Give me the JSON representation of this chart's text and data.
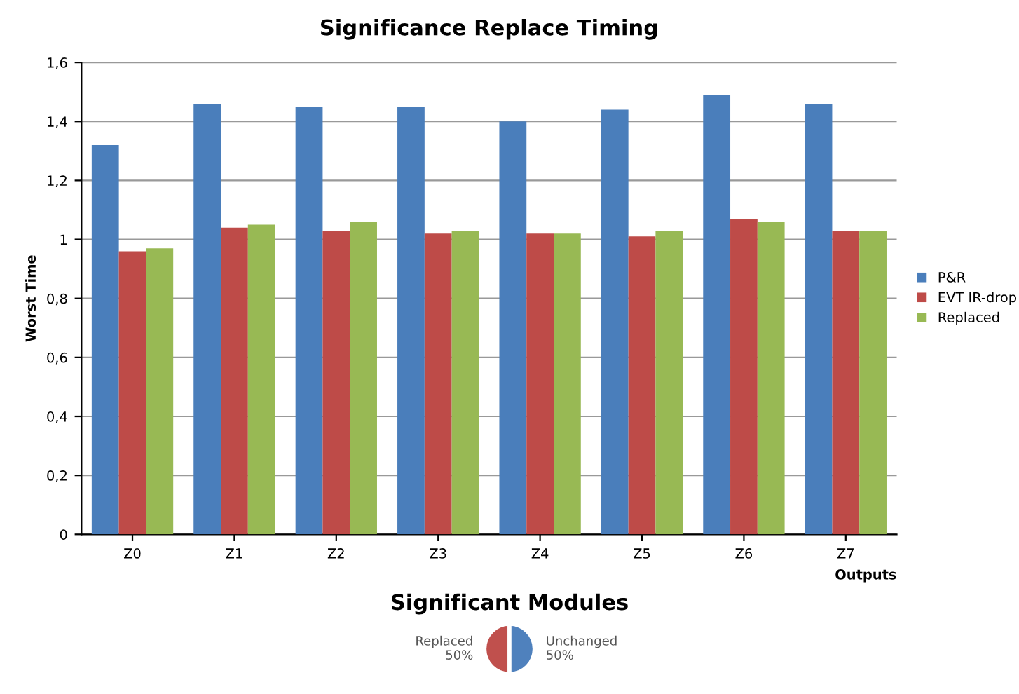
{
  "chart_data": [
    {
      "type": "bar",
      "title": "Significance Replace Timing",
      "xlabel": "Outputs",
      "ylabel": "Worst Time",
      "categories": [
        "Z0",
        "Z1",
        "Z2",
        "Z3",
        "Z4",
        "Z5",
        "Z6",
        "Z7"
      ],
      "series": [
        {
          "name": "P&R",
          "color": "#4a7ebb",
          "values": [
            1.32,
            1.46,
            1.45,
            1.45,
            1.4,
            1.44,
            1.49,
            1.46
          ]
        },
        {
          "name": "EVT IR-drop",
          "color": "#be4b48",
          "values": [
            0.96,
            1.04,
            1.03,
            1.02,
            1.02,
            1.01,
            1.07,
            1.03
          ]
        },
        {
          "name": "Replaced",
          "color": "#98b954",
          "values": [
            0.97,
            1.05,
            1.06,
            1.03,
            1.02,
            1.03,
            1.06,
            1.03
          ]
        }
      ],
      "ylim": [
        0,
        1.6
      ],
      "yticks": [
        0,
        {
          "value": 0.2,
          "label": "0,2"
        },
        {
          "value": 0.4,
          "label": "0,4"
        },
        {
          "value": 0.6,
          "label": "0,6"
        },
        {
          "value": 0.8,
          "label": "0,8"
        },
        1,
        {
          "value": 1.2,
          "label": "1,2"
        },
        {
          "value": 1.4,
          "label": "1,4"
        },
        {
          "value": 1.6,
          "label": "1,6"
        }
      ],
      "grid": "y",
      "legend": "right"
    },
    {
      "type": "pie",
      "title": "Significant Modules",
      "categories": [
        "Replaced",
        "Unchanged"
      ],
      "values": [
        50,
        50
      ],
      "colors": [
        "#c0504d",
        "#4f81bd"
      ],
      "value_labels": [
        "50%",
        "50%"
      ]
    }
  ]
}
